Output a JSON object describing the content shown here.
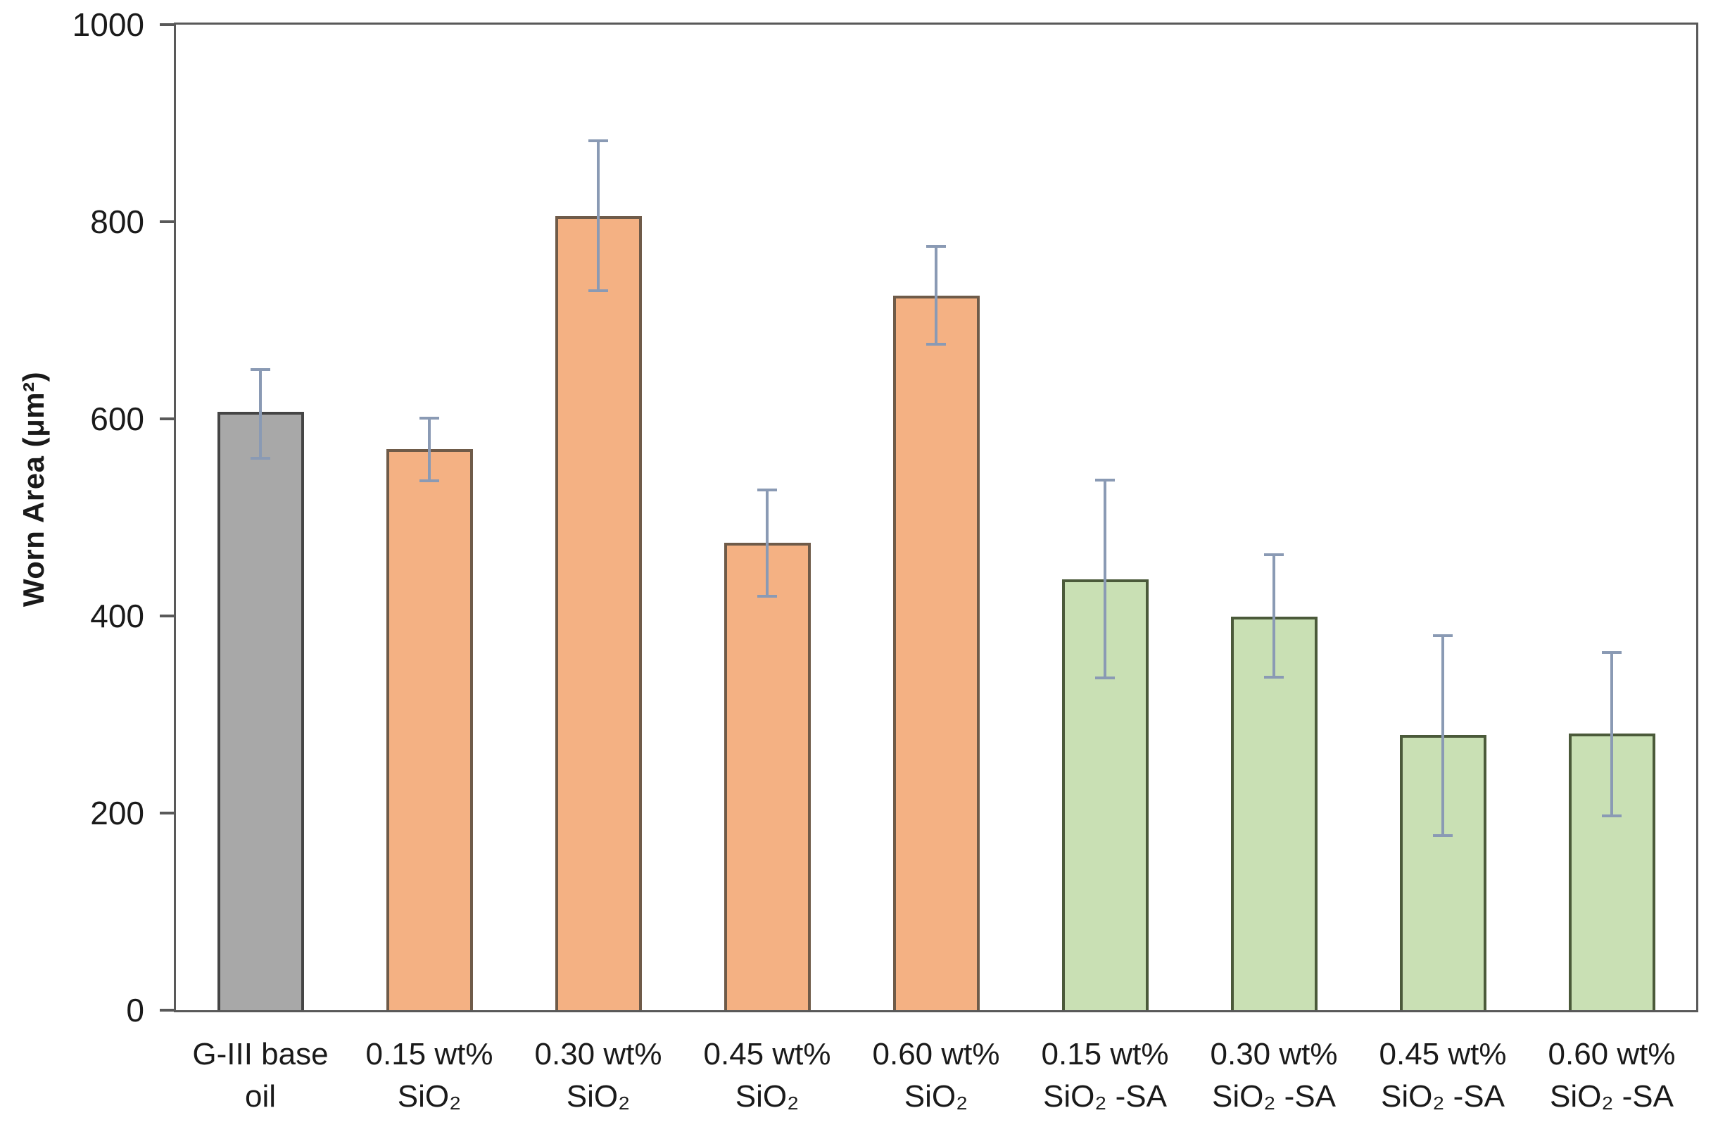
{
  "chart_data": {
    "type": "bar",
    "title": "",
    "xlabel": "",
    "ylabel": "Worn Area (μm²)",
    "ylim": [
      0,
      1000
    ],
    "yticks": [
      0,
      200,
      400,
      600,
      800,
      1000
    ],
    "grid": false,
    "legend_position": "none",
    "bars": [
      {
        "label_line1": "G-III base",
        "label_line2": "oil",
        "value": 607,
        "err_low": 560,
        "err_high": 650,
        "series": "base_oil"
      },
      {
        "label_line1": "0.15 wt%",
        "label_line2": "SiO₂",
        "value": 569,
        "err_low": 537,
        "err_high": 601,
        "series": "sio2"
      },
      {
        "label_line1": "0.30 wt%",
        "label_line2": "SiO₂",
        "value": 806,
        "err_low": 730,
        "err_high": 882,
        "series": "sio2"
      },
      {
        "label_line1": "0.45 wt%",
        "label_line2": "SiO₂",
        "value": 474,
        "err_low": 420,
        "err_high": 528,
        "series": "sio2"
      },
      {
        "label_line1": "0.60 wt%",
        "label_line2": "SiO₂",
        "value": 725,
        "err_low": 676,
        "err_high": 775,
        "series": "sio2"
      },
      {
        "label_line1": "0.15 wt%",
        "label_line2": "SiO₂ -SA",
        "value": 437,
        "err_low": 337,
        "err_high": 538,
        "series": "sio2_sa"
      },
      {
        "label_line1": "0.30 wt%",
        "label_line2": "SiO₂ -SA",
        "value": 399,
        "err_low": 338,
        "err_high": 462,
        "series": "sio2_sa"
      },
      {
        "label_line1": "0.45 wt%",
        "label_line2": "SiO₂ -SA",
        "value": 279,
        "err_low": 177,
        "err_high": 380,
        "series": "sio2_sa"
      },
      {
        "label_line1": "0.60 wt%",
        "label_line2": "SiO₂ -SA",
        "value": 281,
        "err_low": 197,
        "err_high": 363,
        "series": "sio2_sa"
      }
    ],
    "series_styles": {
      "base_oil": {
        "fill": "#a8a8a8",
        "border": "#454545"
      },
      "sio2": {
        "fill": "#f4b183",
        "border": "#6f5b49"
      },
      "sio2_sa": {
        "fill": "#c9e0b4",
        "border": "#4b5a3a"
      }
    },
    "error_bar_color": "#8a9ab4",
    "axis_color": "#595959",
    "text_color": "#1a1a1a"
  }
}
